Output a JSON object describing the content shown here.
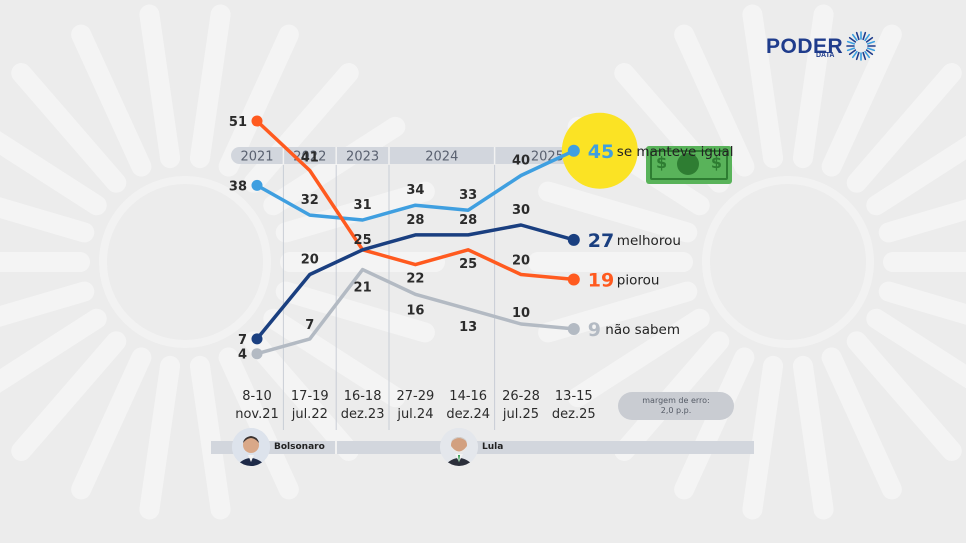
{
  "brand": {
    "name": "PODER",
    "sub": "DATA"
  },
  "chart_data": {
    "type": "line",
    "years": [
      {
        "label": "2021",
        "from": 0,
        "to": 0
      },
      {
        "label": "2022",
        "from": 1,
        "to": 1
      },
      {
        "label": "2023",
        "from": 2,
        "to": 2
      },
      {
        "label": "2024",
        "from": 3,
        "to": 4
      },
      {
        "label": "2025",
        "from": 5,
        "to": 6
      }
    ],
    "categories": [
      [
        "8-10",
        "nov.21"
      ],
      [
        "17-19",
        "jul.22"
      ],
      [
        "16-18",
        "dez.23"
      ],
      [
        "27-29",
        "jul.24"
      ],
      [
        "14-16",
        "dez.24"
      ],
      [
        "26-28",
        "jul.25"
      ],
      [
        "13-15",
        "dez.25"
      ]
    ],
    "series": [
      {
        "name": "se manteve igual",
        "color": "#3f9fe0",
        "values": [
          38,
          32,
          31,
          34,
          33,
          40,
          45
        ],
        "highlight": true
      },
      {
        "name": "melhorou",
        "color": "#1a3f80",
        "values": [
          7,
          20,
          25,
          28,
          28,
          30,
          27
        ]
      },
      {
        "name": "piorou",
        "color": "#ff5a1f",
        "values": [
          51,
          41,
          25,
          22,
          25,
          20,
          19
        ]
      },
      {
        "name": "não sabem",
        "color": "#b3bac3",
        "values": [
          4,
          7,
          21,
          16,
          13,
          10,
          9
        ]
      }
    ],
    "point_labels": [
      [
        {
          "s": 2,
          "v": "51"
        },
        {
          "s": 0,
          "v": "38"
        },
        {
          "s": 1,
          "v": "7"
        },
        {
          "s": 3,
          "v": "4"
        }
      ],
      [
        {
          "s": 2,
          "v": "41"
        },
        {
          "s": 0,
          "v": "32"
        },
        {
          "s": 1,
          "v": "20"
        },
        {
          "s": 3,
          "v": "7"
        }
      ],
      [
        {
          "s": 0,
          "v": "31"
        },
        {
          "s": 1,
          "v": "25"
        },
        {
          "s": 3,
          "v": "21"
        }
      ],
      [
        {
          "s": 0,
          "v": "34"
        },
        {
          "s": 1,
          "v": "28"
        },
        {
          "s": 2,
          "v": "22"
        },
        {
          "s": 3,
          "v": "16"
        }
      ],
      [
        {
          "s": 0,
          "v": "33"
        },
        {
          "s": 1,
          "v": "28"
        },
        {
          "s": 2,
          "v": "25"
        },
        {
          "s": 3,
          "v": "13"
        }
      ],
      [
        {
          "s": 0,
          "v": "40"
        },
        {
          "s": 1,
          "v": "30"
        },
        {
          "s": 2,
          "v": "20"
        },
        {
          "s": 3,
          "v": "10"
        }
      ],
      []
    ],
    "end_labels": [
      "45",
      "27",
      "19",
      "9"
    ],
    "margin_note": [
      "margem de erro:",
      "2,0 p.p."
    ]
  },
  "presidents": [
    {
      "name": "Bolsonaro",
      "icon": "bolsonaro-avatar"
    },
    {
      "name": "Lula",
      "icon": "lula-avatar"
    }
  ],
  "decor": {
    "money_icon": "dollar-bill-icon",
    "money_symbol": "$"
  }
}
